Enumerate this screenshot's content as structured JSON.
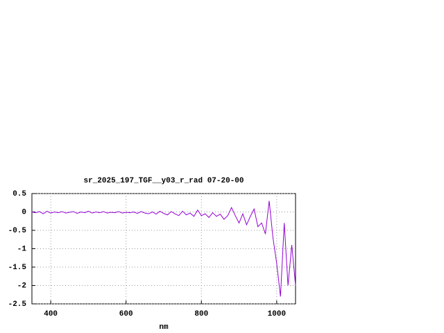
{
  "chart_data": {
    "type": "line",
    "title": "sr_2025_197_TGF__y03_r_rad 07-20-00",
    "x_label": "nm",
    "x": [
      350,
      360,
      370,
      380,
      390,
      400,
      410,
      420,
      430,
      440,
      450,
      460,
      470,
      480,
      490,
      500,
      510,
      520,
      530,
      540,
      550,
      560,
      570,
      580,
      590,
      600,
      610,
      620,
      630,
      640,
      650,
      660,
      670,
      680,
      690,
      700,
      710,
      720,
      730,
      740,
      750,
      760,
      770,
      780,
      790,
      800,
      810,
      820,
      830,
      840,
      850,
      860,
      870,
      880,
      890,
      900,
      910,
      920,
      930,
      940,
      950,
      960,
      970,
      980,
      990,
      1000,
      1010,
      1020,
      1030,
      1040,
      1050
    ],
    "series": [
      {
        "color": "#9400d3",
        "values": [
          0,
          -0.02,
          0.01,
          -0.05,
          0.02,
          -0.03,
          0,
          -0.02,
          0.01,
          -0.03,
          -0.01,
          0.01,
          -0.04,
          0,
          -0.02,
          0.02,
          -0.03,
          0,
          -0.02,
          0.01,
          -0.03,
          -0.01,
          -0.02,
          0.01,
          -0.03,
          -0.01,
          -0.02,
          0,
          -0.04,
          0.01,
          -0.03,
          -0.05,
          0,
          -0.06,
          0.02,
          -0.04,
          -0.08,
          0.01,
          -0.05,
          -0.1,
          0.02,
          -0.08,
          -0.03,
          -0.12,
          0.05,
          -0.1,
          -0.05,
          -0.15,
          -0.02,
          -0.12,
          -0.06,
          -0.2,
          -0.1,
          0.12,
          -0.1,
          -0.3,
          -0.05,
          -0.35,
          -0.12,
          0.08,
          -0.4,
          -0.3,
          -0.6,
          0.3,
          -0.7,
          -1.4,
          -2.3,
          -0.3,
          -2.0,
          -0.9,
          -2.0
        ]
      }
    ],
    "xlim": [
      350,
      1050
    ],
    "ylim": [
      -2.5,
      0.5
    ],
    "xticks": [
      400,
      600,
      800,
      1000
    ],
    "yticks": [
      0.5,
      0,
      -0.5,
      -1,
      -1.5,
      -2,
      -2.5
    ],
    "grid": true
  }
}
